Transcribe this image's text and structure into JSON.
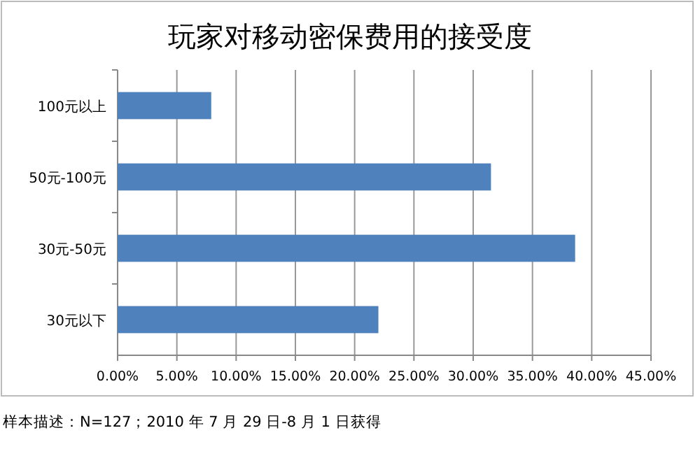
{
  "chart_data": {
    "type": "bar",
    "orientation": "horizontal",
    "title": "玩家对移动密保费用的接受度",
    "categories": [
      "100元以上",
      "50元-100元",
      "30元-50元",
      "30元以下"
    ],
    "values": [
      7.9,
      31.5,
      38.6,
      22.0
    ],
    "color": "#4f81bd",
    "xlim": [
      0,
      45
    ],
    "xticks": [
      {
        "value": 0,
        "label": "0.00%"
      },
      {
        "value": 5,
        "label": "5.00%"
      },
      {
        "value": 10,
        "label": "10.00%"
      },
      {
        "value": 15,
        "label": "15.00%"
      },
      {
        "value": 20,
        "label": "20.00%"
      },
      {
        "value": 25,
        "label": "25.00%"
      },
      {
        "value": 30,
        "label": "30.00%"
      },
      {
        "value": 35,
        "label": "35.00%"
      },
      {
        "value": 40,
        "label": "40.00%"
      },
      {
        "value": 45,
        "label": "45.00%"
      }
    ],
    "grid": "x",
    "annotations": [
      "样本描述：N=127；2010 年 7 月 29 日-8 月 1 日获得"
    ]
  }
}
